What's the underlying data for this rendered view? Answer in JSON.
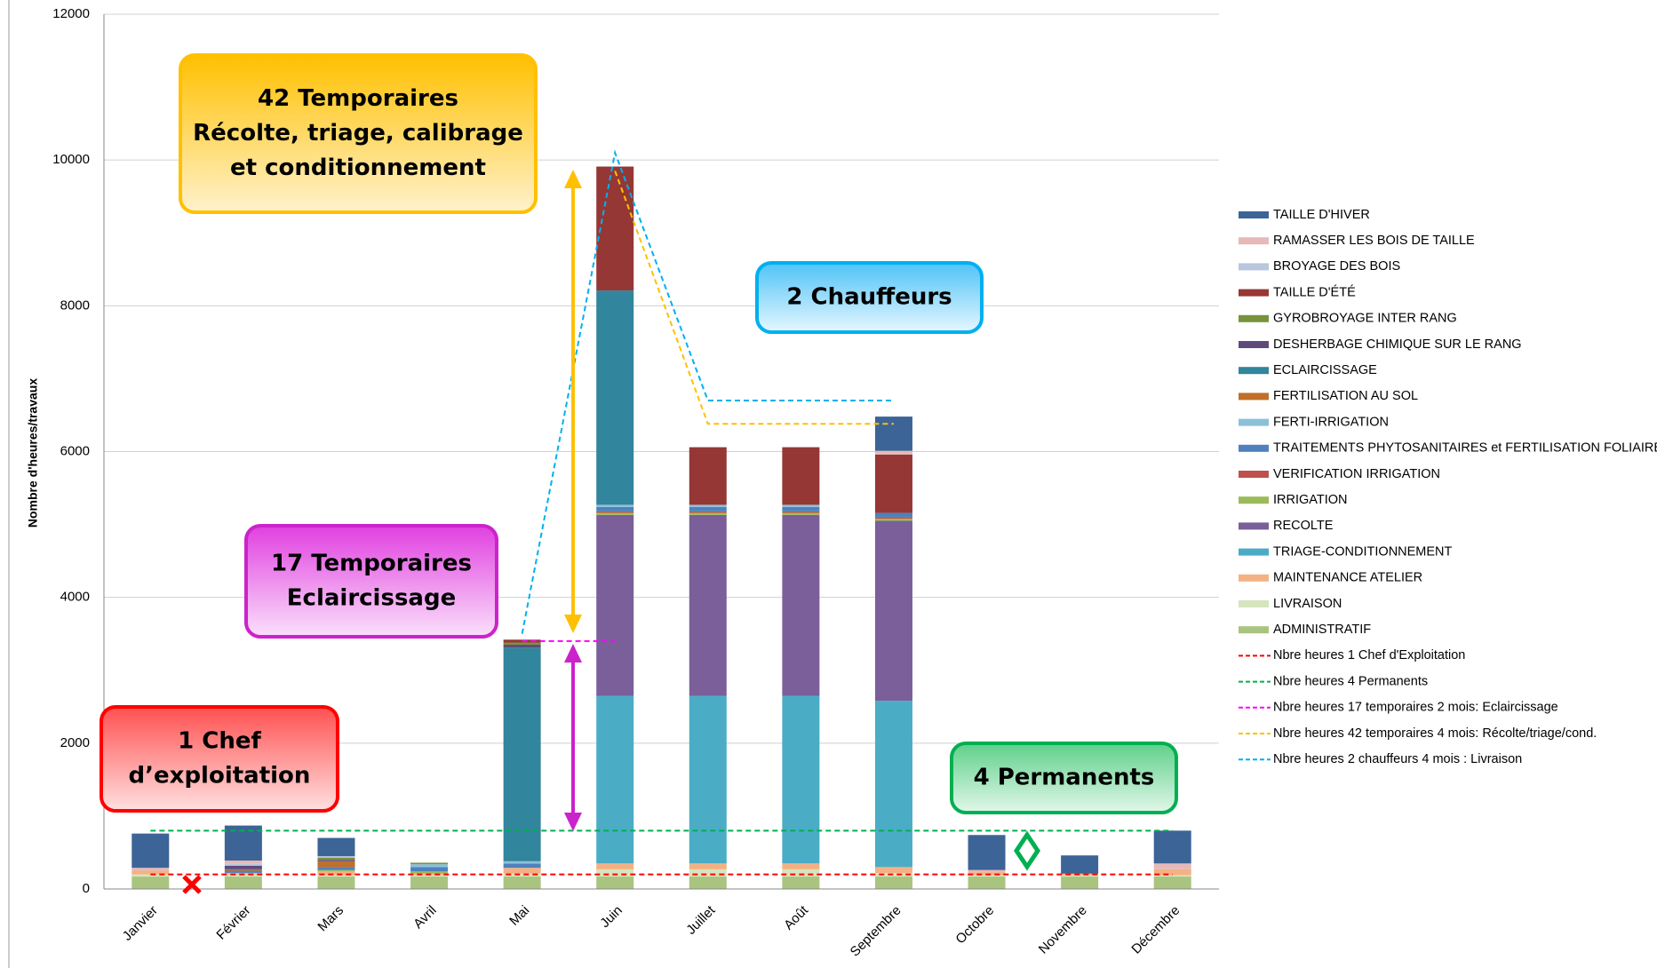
{
  "chart_data": {
    "type": "bar",
    "stacked": true,
    "y_label": "Nombre d'heures/travaux",
    "categories": [
      "Janvier",
      "Février",
      "Mars",
      "Avril",
      "Mai",
      "Juin",
      "Juillet",
      "Août",
      "Septembre",
      "Octobre",
      "Novembre",
      "Décembre"
    ],
    "ylim": [
      0,
      12000
    ],
    "yticks": [
      0,
      2000,
      4000,
      6000,
      8000,
      10000,
      12000
    ],
    "grid": true,
    "series": [
      {
        "name": "ADMINISTRATIF",
        "color": "#a9c47f",
        "values": [
          170,
          170,
          170,
          170,
          170,
          170,
          170,
          170,
          170,
          170,
          170,
          170
        ]
      },
      {
        "name": "LIVRAISON",
        "color": "#d7e4bd",
        "values": [
          30,
          30,
          20,
          20,
          40,
          100,
          100,
          100,
          50,
          20,
          20,
          20
        ]
      },
      {
        "name": "MAINTENANCE ATELIER",
        "color": "#f4b183",
        "values": [
          50,
          20,
          50,
          20,
          80,
          80,
          80,
          80,
          80,
          40,
          20,
          80
        ]
      },
      {
        "name": "TRIAGE-CONDITIONNEMENT",
        "color": "#4bacc6",
        "values": [
          0,
          0,
          0,
          0,
          0,
          2300,
          2300,
          2300,
          2280,
          0,
          0,
          0
        ]
      },
      {
        "name": "RECOLTE",
        "color": "#7a5f9a",
        "values": [
          0,
          0,
          0,
          0,
          0,
          2480,
          2480,
          2480,
          2470,
          0,
          0,
          0
        ]
      },
      {
        "name": "IRRIGATION",
        "color": "#9bbb59",
        "values": [
          0,
          0,
          20,
          30,
          0,
          30,
          30,
          30,
          30,
          0,
          0,
          0
        ]
      },
      {
        "name": "VERIFICATION IRRIGATION",
        "color": "#c0504d",
        "values": [
          0,
          0,
          0,
          0,
          0,
          20,
          20,
          20,
          20,
          0,
          0,
          0
        ]
      },
      {
        "name": "TRAITEMENTS PHYTOSANITAIRES et FERTILISATION FOLIAIRE",
        "color": "#4f81bd",
        "values": [
          0,
          30,
          40,
          60,
          60,
          60,
          60,
          60,
          60,
          0,
          0,
          0
        ]
      },
      {
        "name": "FERTI-IRRIGATION",
        "color": "#8cc0d8",
        "values": [
          0,
          0,
          0,
          40,
          30,
          30,
          30,
          30,
          0,
          0,
          0,
          0
        ]
      },
      {
        "name": "FERTILISATION AU SOL",
        "color": "#c0702a",
        "values": [
          0,
          20,
          80,
          0,
          0,
          0,
          0,
          0,
          0,
          0,
          0,
          0
        ]
      },
      {
        "name": "ECLAIRCISSAGE",
        "color": "#31859c",
        "values": [
          0,
          0,
          0,
          0,
          2930,
          2940,
          0,
          0,
          0,
          0,
          0,
          0
        ]
      },
      {
        "name": "DESHERBAGE CHIMIQUE SUR LE RANG",
        "color": "#604a7b",
        "values": [
          0,
          50,
          20,
          0,
          40,
          0,
          0,
          0,
          0,
          0,
          0,
          0
        ]
      },
      {
        "name": "GYROBROYAGE INTER RANG",
        "color": "#77933c",
        "values": [
          0,
          0,
          30,
          20,
          30,
          0,
          0,
          0,
          0,
          0,
          0,
          0
        ]
      },
      {
        "name": "TAILLE D'ÉTÉ",
        "color": "#953735",
        "values": [
          0,
          0,
          0,
          0,
          40,
          1700,
          790,
          790,
          800,
          0,
          0,
          0
        ]
      },
      {
        "name": "BROYAGE DES BOIS",
        "color": "#b9c7de",
        "values": [
          0,
          30,
          20,
          0,
          0,
          0,
          0,
          0,
          0,
          0,
          0,
          0
        ]
      },
      {
        "name": "RAMASSER LES BOIS DE TAILLE",
        "color": "#e6b9b8",
        "values": [
          40,
          40,
          0,
          0,
          0,
          0,
          0,
          0,
          50,
          30,
          0,
          80
        ]
      },
      {
        "name": "TAILLE D'HIVER",
        "color": "#3c6496",
        "values": [
          470,
          480,
          250,
          0,
          0,
          0,
          0,
          0,
          470,
          480,
          250,
          450
        ]
      }
    ],
    "lines": [
      {
        "name": "Nbre heures 1 Chef d'Exploitation",
        "color": "#ff0000",
        "values": [
          200,
          200,
          200,
          200,
          200,
          200,
          200,
          200,
          200,
          200,
          200,
          200
        ]
      },
      {
        "name": "Nbre heures 4 Permanents",
        "color": "#00b050",
        "values": [
          800,
          800,
          800,
          800,
          800,
          800,
          800,
          800,
          800,
          800,
          800,
          800
        ]
      },
      {
        "name": "Nbre heures 17 temporaires 2 mois: Eclaircissage",
        "color": "#ff00ff",
        "values": [
          null,
          null,
          null,
          null,
          3400,
          3400,
          null,
          null,
          null,
          null,
          null,
          null
        ]
      },
      {
        "name": "Nbre heures 42 temporaires 4 mois: Récolte/triage/cond.",
        "color": "#ffc000",
        "values": [
          null,
          null,
          null,
          null,
          null,
          9850,
          6380,
          6380,
          6380,
          null,
          null,
          null
        ]
      },
      {
        "name": "Nbre heures 2 chauffeurs 4 mois : Livraison",
        "color": "#00b0f0",
        "values": [
          null,
          null,
          null,
          null,
          3500,
          10100,
          6700,
          6700,
          6700,
          null,
          null,
          null
        ]
      }
    ],
    "annotations": [
      {
        "lines": [
          "42 Temporaires",
          "Récolte, triage, calibrage",
          "et conditionnement"
        ]
      },
      {
        "lines": [
          "2 Chauffeurs"
        ]
      },
      {
        "lines": [
          "17 Temporaires",
          "Eclaircissage"
        ]
      },
      {
        "lines": [
          "1 Chef",
          "d’exploitation"
        ]
      },
      {
        "lines": [
          "4 Permanents"
        ]
      }
    ]
  }
}
